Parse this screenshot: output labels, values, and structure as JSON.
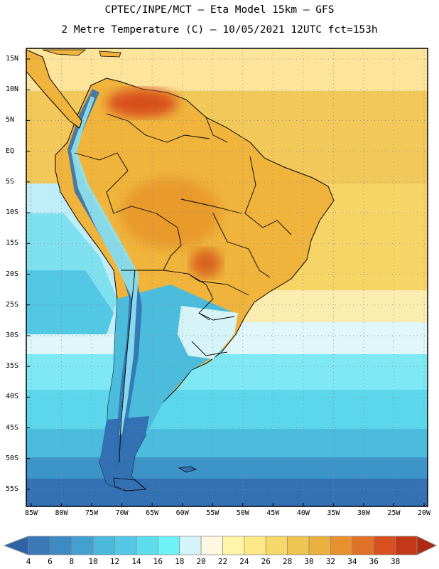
{
  "header": {
    "line1": "CPTEC/INPE/MCT –  Eta Model 15km – GFS",
    "line2": "2 Metre Temperature (C) – 10/05/2021 12UTC fct=153h"
  },
  "map": {
    "lat_labels": [
      "15N",
      "10N",
      "5N",
      "EQ",
      "5S",
      "10S",
      "15S",
      "20S",
      "25S",
      "30S",
      "35S",
      "40S",
      "45S",
      "50S",
      "55S"
    ],
    "lat_values": [
      15,
      10,
      5,
      0,
      -5,
      -10,
      -15,
      -20,
      -25,
      -30,
      -35,
      -40,
      -45,
      -50,
      -55
    ],
    "lon_labels": [
      "85W",
      "80W",
      "75W",
      "70W",
      "65W",
      "60W",
      "55W",
      "50W",
      "45W",
      "40W",
      "35W",
      "30W",
      "25W",
      "20W"
    ],
    "lon_values": [
      -85,
      -80,
      -75,
      -70,
      -65,
      -60,
      -55,
      -50,
      -45,
      -40,
      -35,
      -30,
      -25,
      -20
    ]
  },
  "colorbar": {
    "labels": [
      "4",
      "6",
      "8",
      "10",
      "12",
      "14",
      "16",
      "18",
      "20",
      "22",
      "24",
      "26",
      "28",
      "30",
      "32",
      "34",
      "36",
      "38"
    ],
    "colors": [
      "#3a78b8",
      "#3e8ac4",
      "#43a0d0",
      "#4cb8dc",
      "#52c8e4",
      "#5ddcec",
      "#6ef2f8",
      "#d4f4fa",
      "#fff8e0",
      "#fff4a8",
      "#fde888",
      "#f6d86a",
      "#efc450",
      "#eab040",
      "#e69030",
      "#e07228",
      "#d85020",
      "#c43818"
    ],
    "under_color": "#2f63a8",
    "over_color": "#b02810"
  }
}
